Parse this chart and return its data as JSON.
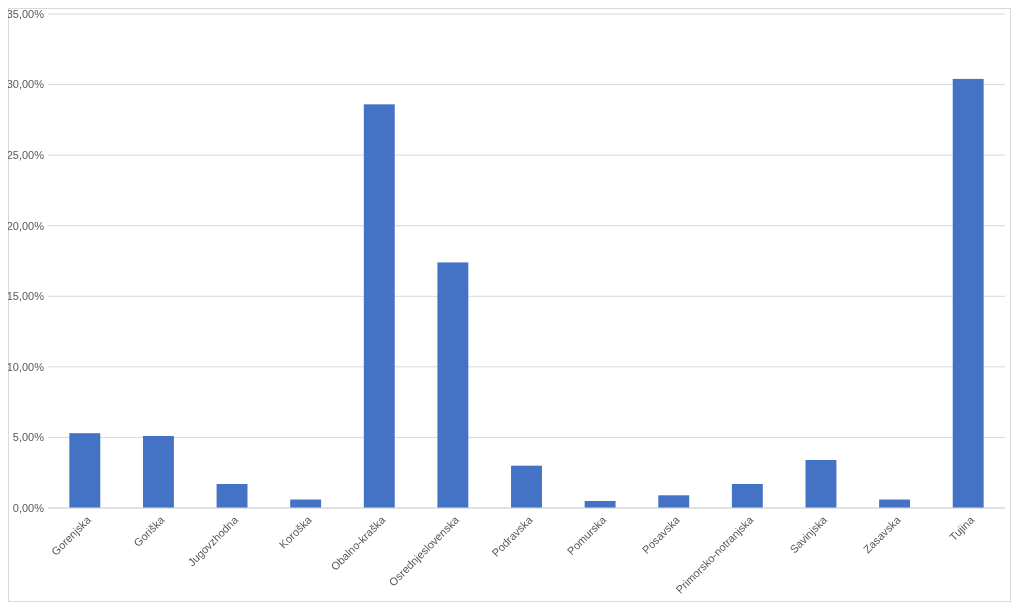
{
  "chart_data": {
    "type": "bar",
    "categories": [
      "Gorenjska",
      "Goriška",
      "Jugovzhodna",
      "Koroška",
      "Obalno-kraška",
      "Osrednjeslovenska",
      "Podravska",
      "Pomurska",
      "Posavska",
      "Primorsko-notranjska",
      "Savinjska",
      "Zasavska",
      "Tujina"
    ],
    "values": [
      5.3,
      5.1,
      1.7,
      0.6,
      28.6,
      17.4,
      3.0,
      0.5,
      0.9,
      1.7,
      3.4,
      0.6,
      30.4
    ],
    "color": "#4472c4",
    "ylim": [
      0,
      35
    ],
    "yticks": [
      {
        "value": 0,
        "label": "0,00%"
      },
      {
        "value": 5,
        "label": "5,00%"
      },
      {
        "value": 10,
        "label": "10,00%"
      },
      {
        "value": 15,
        "label": "15,00%"
      },
      {
        "value": 20,
        "label": "20,00%"
      },
      {
        "value": 25,
        "label": "25,00%"
      },
      {
        "value": 30,
        "label": "30,00%"
      },
      {
        "value": 35,
        "label": "35,00%"
      }
    ],
    "grid": "y"
  }
}
